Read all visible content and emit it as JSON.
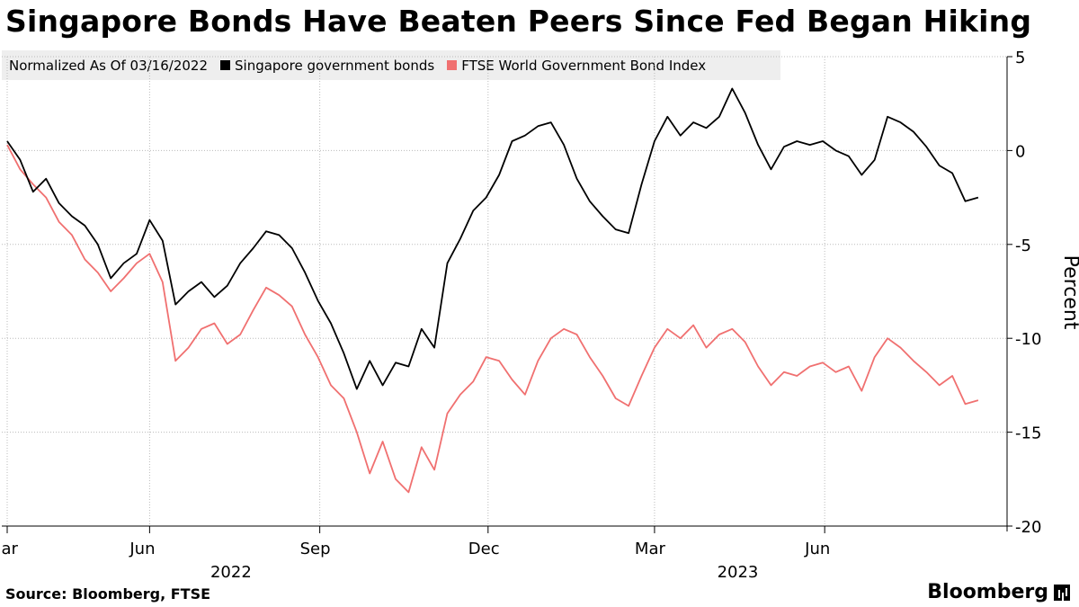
{
  "title": "Singapore Bonds Have Beaten Peers Since Fed Began Hiking",
  "legend": {
    "note": "Normalized As Of 03/16/2022",
    "items": [
      {
        "label": "Singapore government bonds",
        "color": "#000000"
      },
      {
        "label": "FTSE World Government Bond Index",
        "color": "#f07070"
      }
    ]
  },
  "footer": {
    "source": "Source:  Bloomberg, FTSE",
    "brand": "Bloomberg",
    "brand_icon": "bloomberg-terminal-icon"
  },
  "chart_data": {
    "type": "line",
    "ylabel": "Percent",
    "ylim": [
      -20,
      5
    ],
    "y_ticks": [
      5,
      0,
      -5,
      -10,
      -15,
      -20
    ],
    "x_range": [
      "2022-03-16",
      "2023-08-25"
    ],
    "x_ticks": [
      {
        "label": "Mar",
        "date": "2022-03-16"
      },
      {
        "label": "Jun",
        "date": "2022-06-01"
      },
      {
        "label": "Sep",
        "date": "2022-09-01"
      },
      {
        "label": "Dec",
        "date": "2022-12-01"
      },
      {
        "label": "Mar",
        "date": "2023-03-01"
      },
      {
        "label": "Jun",
        "date": "2023-06-01"
      }
    ],
    "year_labels": [
      {
        "label": "2022",
        "date": "2022-07-15"
      },
      {
        "label": "2023",
        "date": "2023-04-15"
      }
    ],
    "series": [
      {
        "name": "Singapore government bonds",
        "color": "#000000",
        "points": [
          [
            "2022-03-16",
            0.5
          ],
          [
            "2022-03-23",
            -0.5
          ],
          [
            "2022-03-30",
            -2.2
          ],
          [
            "2022-04-06",
            -1.5
          ],
          [
            "2022-04-13",
            -2.8
          ],
          [
            "2022-04-20",
            -3.5
          ],
          [
            "2022-04-27",
            -4.0
          ],
          [
            "2022-05-04",
            -5.0
          ],
          [
            "2022-05-11",
            -6.8
          ],
          [
            "2022-05-18",
            -6.0
          ],
          [
            "2022-05-25",
            -5.5
          ],
          [
            "2022-06-01",
            -3.7
          ],
          [
            "2022-06-08",
            -4.8
          ],
          [
            "2022-06-15",
            -8.2
          ],
          [
            "2022-06-22",
            -7.5
          ],
          [
            "2022-06-29",
            -7.0
          ],
          [
            "2022-07-06",
            -7.8
          ],
          [
            "2022-07-13",
            -7.2
          ],
          [
            "2022-07-20",
            -6.0
          ],
          [
            "2022-07-27",
            -5.2
          ],
          [
            "2022-08-03",
            -4.3
          ],
          [
            "2022-08-10",
            -4.5
          ],
          [
            "2022-08-17",
            -5.2
          ],
          [
            "2022-08-24",
            -6.5
          ],
          [
            "2022-08-31",
            -8.0
          ],
          [
            "2022-09-07",
            -9.2
          ],
          [
            "2022-09-14",
            -10.8
          ],
          [
            "2022-09-21",
            -12.7
          ],
          [
            "2022-09-28",
            -11.2
          ],
          [
            "2022-10-05",
            -12.5
          ],
          [
            "2022-10-12",
            -11.3
          ],
          [
            "2022-10-19",
            -11.5
          ],
          [
            "2022-10-26",
            -9.5
          ],
          [
            "2022-11-02",
            -10.5
          ],
          [
            "2022-11-09",
            -6.0
          ],
          [
            "2022-11-16",
            -4.7
          ],
          [
            "2022-11-23",
            -3.2
          ],
          [
            "2022-11-30",
            -2.5
          ],
          [
            "2022-12-07",
            -1.3
          ],
          [
            "2022-12-14",
            0.5
          ],
          [
            "2022-12-21",
            0.8
          ],
          [
            "2022-12-28",
            1.3
          ],
          [
            "2023-01-04",
            1.5
          ],
          [
            "2023-01-11",
            0.3
          ],
          [
            "2023-01-18",
            -1.5
          ],
          [
            "2023-01-25",
            -2.7
          ],
          [
            "2023-02-01",
            -3.5
          ],
          [
            "2023-02-08",
            -4.2
          ],
          [
            "2023-02-15",
            -4.4
          ],
          [
            "2023-02-22",
            -1.8
          ],
          [
            "2023-03-01",
            0.5
          ],
          [
            "2023-03-08",
            1.8
          ],
          [
            "2023-03-15",
            0.8
          ],
          [
            "2023-03-22",
            1.5
          ],
          [
            "2023-03-29",
            1.2
          ],
          [
            "2023-04-05",
            1.8
          ],
          [
            "2023-04-12",
            3.3
          ],
          [
            "2023-04-19",
            2.0
          ],
          [
            "2023-04-26",
            0.3
          ],
          [
            "2023-05-03",
            -1.0
          ],
          [
            "2023-05-10",
            0.2
          ],
          [
            "2023-05-17",
            0.5
          ],
          [
            "2023-05-24",
            0.3
          ],
          [
            "2023-05-31",
            0.5
          ],
          [
            "2023-06-07",
            0.0
          ],
          [
            "2023-06-14",
            -0.3
          ],
          [
            "2023-06-21",
            -1.3
          ],
          [
            "2023-06-28",
            -0.5
          ],
          [
            "2023-07-05",
            1.8
          ],
          [
            "2023-07-12",
            1.5
          ],
          [
            "2023-07-19",
            1.0
          ],
          [
            "2023-07-26",
            0.2
          ],
          [
            "2023-08-02",
            -0.8
          ],
          [
            "2023-08-09",
            -1.2
          ],
          [
            "2023-08-16",
            -2.7
          ],
          [
            "2023-08-23",
            -2.5
          ]
        ]
      },
      {
        "name": "FTSE World Government Bond Index",
        "color": "#f07070",
        "points": [
          [
            "2022-03-16",
            0.3
          ],
          [
            "2022-03-23",
            -1.0
          ],
          [
            "2022-03-30",
            -1.8
          ],
          [
            "2022-04-06",
            -2.5
          ],
          [
            "2022-04-13",
            -3.8
          ],
          [
            "2022-04-20",
            -4.5
          ],
          [
            "2022-04-27",
            -5.8
          ],
          [
            "2022-05-04",
            -6.5
          ],
          [
            "2022-05-11",
            -7.5
          ],
          [
            "2022-05-18",
            -6.8
          ],
          [
            "2022-05-25",
            -6.0
          ],
          [
            "2022-06-01",
            -5.5
          ],
          [
            "2022-06-08",
            -7.0
          ],
          [
            "2022-06-15",
            -11.2
          ],
          [
            "2022-06-22",
            -10.5
          ],
          [
            "2022-06-29",
            -9.5
          ],
          [
            "2022-07-06",
            -9.2
          ],
          [
            "2022-07-13",
            -10.3
          ],
          [
            "2022-07-20",
            -9.8
          ],
          [
            "2022-07-27",
            -8.5
          ],
          [
            "2022-08-03",
            -7.3
          ],
          [
            "2022-08-10",
            -7.7
          ],
          [
            "2022-08-17",
            -8.3
          ],
          [
            "2022-08-24",
            -9.8
          ],
          [
            "2022-08-31",
            -11.0
          ],
          [
            "2022-09-07",
            -12.5
          ],
          [
            "2022-09-14",
            -13.2
          ],
          [
            "2022-09-21",
            -15.0
          ],
          [
            "2022-09-28",
            -17.2
          ],
          [
            "2022-10-05",
            -15.5
          ],
          [
            "2022-10-12",
            -17.5
          ],
          [
            "2022-10-19",
            -18.2
          ],
          [
            "2022-10-26",
            -15.8
          ],
          [
            "2022-11-02",
            -17.0
          ],
          [
            "2022-11-09",
            -14.0
          ],
          [
            "2022-11-16",
            -13.0
          ],
          [
            "2022-11-23",
            -12.3
          ],
          [
            "2022-11-30",
            -11.0
          ],
          [
            "2022-12-07",
            -11.2
          ],
          [
            "2022-12-14",
            -12.2
          ],
          [
            "2022-12-21",
            -13.0
          ],
          [
            "2022-12-28",
            -11.2
          ],
          [
            "2023-01-04",
            -10.0
          ],
          [
            "2023-01-11",
            -9.5
          ],
          [
            "2023-01-18",
            -9.8
          ],
          [
            "2023-01-25",
            -11.0
          ],
          [
            "2023-02-01",
            -12.0
          ],
          [
            "2023-02-08",
            -13.2
          ],
          [
            "2023-02-15",
            -13.6
          ],
          [
            "2023-02-22",
            -12.0
          ],
          [
            "2023-03-01",
            -10.5
          ],
          [
            "2023-03-08",
            -9.5
          ],
          [
            "2023-03-15",
            -10.0
          ],
          [
            "2023-03-22",
            -9.3
          ],
          [
            "2023-03-29",
            -10.5
          ],
          [
            "2023-04-05",
            -9.8
          ],
          [
            "2023-04-12",
            -9.5
          ],
          [
            "2023-04-19",
            -10.2
          ],
          [
            "2023-04-26",
            -11.5
          ],
          [
            "2023-05-03",
            -12.5
          ],
          [
            "2023-05-10",
            -11.8
          ],
          [
            "2023-05-17",
            -12.0
          ],
          [
            "2023-05-24",
            -11.5
          ],
          [
            "2023-05-31",
            -11.3
          ],
          [
            "2023-06-07",
            -11.8
          ],
          [
            "2023-06-14",
            -11.5
          ],
          [
            "2023-06-21",
            -12.8
          ],
          [
            "2023-06-28",
            -11.0
          ],
          [
            "2023-07-05",
            -10.0
          ],
          [
            "2023-07-12",
            -10.5
          ],
          [
            "2023-07-19",
            -11.2
          ],
          [
            "2023-07-26",
            -11.8
          ],
          [
            "2023-08-02",
            -12.5
          ],
          [
            "2023-08-09",
            -12.0
          ],
          [
            "2023-08-16",
            -13.5
          ],
          [
            "2023-08-23",
            -13.3
          ]
        ]
      }
    ]
  }
}
